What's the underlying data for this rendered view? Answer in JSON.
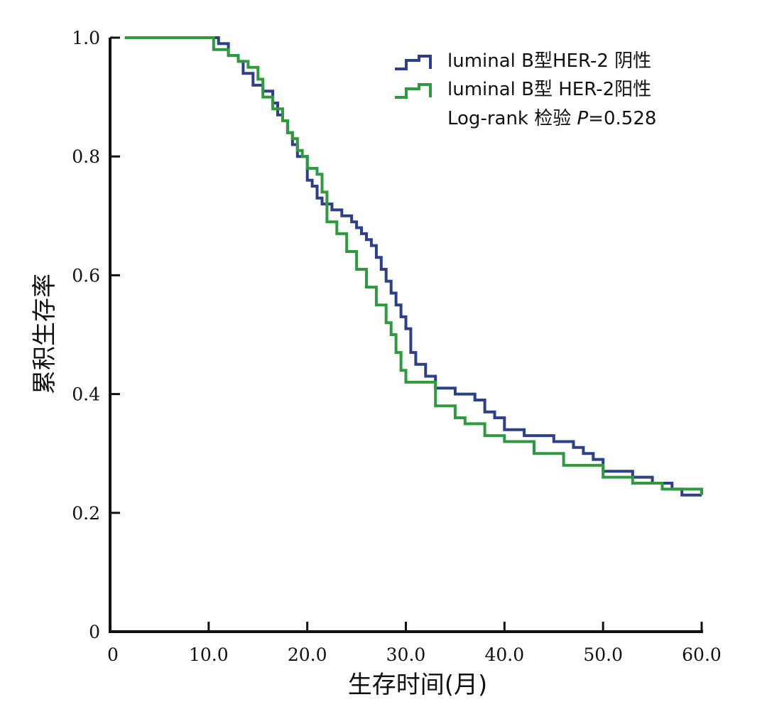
{
  "chart_data": {
    "type": "line",
    "subtype": "kaplan-meier step",
    "xlabel": "生存时间(月)",
    "ylabel": "累积生存率",
    "xlim": [
      0,
      60
    ],
    "ylim": [
      0,
      1.0
    ],
    "x_ticks": [
      0,
      10,
      20,
      30,
      40,
      50,
      60
    ],
    "x_tick_labels": [
      "0",
      "10.0",
      "20.0",
      "30.0",
      "40.0",
      "50.0",
      "60.0"
    ],
    "y_ticks": [
      0,
      0.2,
      0.4,
      0.6,
      0.8,
      1.0
    ],
    "y_tick_labels": [
      "0",
      "0.2",
      "0.4",
      "0.6",
      "0.8",
      "1.0"
    ],
    "grid": false,
    "legend_position": "top-right",
    "annotation": {
      "prefix": "Log-rank 检验 ",
      "p_symbol": "P",
      "suffix": "=0.528"
    },
    "series": [
      {
        "name": "luminal B型HER-2 阴性",
        "color": "#2b3f8c",
        "x": [
          1.5,
          11.0,
          12.0,
          13.0,
          13.5,
          14.5,
          15.5,
          16.5,
          17.0,
          17.5,
          18.0,
          18.5,
          19.0,
          20.0,
          20.5,
          21.0,
          21.5,
          22.5,
          23.5,
          24.5,
          25.0,
          25.5,
          26.0,
          26.5,
          27.0,
          27.5,
          28.0,
          28.5,
          29.0,
          29.5,
          30.0,
          30.5,
          31.0,
          32.0,
          33.0,
          34.0,
          35.0,
          36.0,
          37.0,
          38.0,
          39.0,
          40.0,
          42.0,
          45.0,
          47.0,
          48.0,
          49.0,
          50.0,
          53.0,
          55.0,
          57.0,
          58.0,
          60.0
        ],
        "y": [
          1.0,
          0.99,
          0.97,
          0.96,
          0.94,
          0.92,
          0.91,
          0.89,
          0.87,
          0.86,
          0.84,
          0.82,
          0.8,
          0.76,
          0.75,
          0.73,
          0.72,
          0.71,
          0.7,
          0.69,
          0.68,
          0.67,
          0.66,
          0.65,
          0.63,
          0.61,
          0.59,
          0.57,
          0.55,
          0.53,
          0.51,
          0.47,
          0.45,
          0.43,
          0.41,
          0.41,
          0.4,
          0.4,
          0.39,
          0.37,
          0.36,
          0.34,
          0.33,
          0.32,
          0.31,
          0.3,
          0.29,
          0.27,
          0.26,
          0.25,
          0.24,
          0.23,
          0.23
        ]
      },
      {
        "name": "luminal B型 HER-2阳性",
        "color": "#2e9a3e",
        "x": [
          1.5,
          10.5,
          12.0,
          13.0,
          14.0,
          15.0,
          15.5,
          16.5,
          17.5,
          18.0,
          18.5,
          19.0,
          19.5,
          20.0,
          21.0,
          21.5,
          22.0,
          23.0,
          24.0,
          25.0,
          26.0,
          27.0,
          28.0,
          28.5,
          29.0,
          29.5,
          30.0,
          33.0,
          35.0,
          36.0,
          38.0,
          40.0,
          43.0,
          46.0,
          50.0,
          53.0,
          56.0,
          60.0
        ],
        "y": [
          1.0,
          0.98,
          0.97,
          0.96,
          0.95,
          0.93,
          0.9,
          0.88,
          0.86,
          0.84,
          0.83,
          0.81,
          0.8,
          0.78,
          0.77,
          0.74,
          0.69,
          0.67,
          0.64,
          0.61,
          0.58,
          0.55,
          0.52,
          0.5,
          0.47,
          0.44,
          0.42,
          0.38,
          0.36,
          0.35,
          0.33,
          0.32,
          0.3,
          0.28,
          0.26,
          0.25,
          0.24,
          0.23
        ]
      }
    ]
  }
}
